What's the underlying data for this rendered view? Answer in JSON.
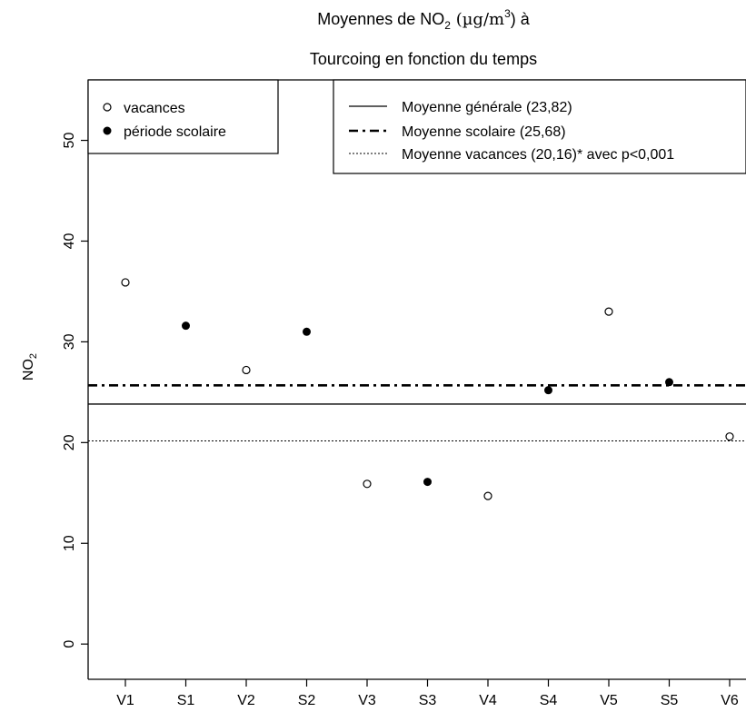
{
  "chart_data": {
    "type": "scatter",
    "title_line1_pre": "Moyennes de NO",
    "title_line1_sub": "2",
    "title_line1_unit_open": " (µg",
    "title_line1_unit_slash": "/",
    "title_line1_unit_m": "m",
    "title_line1_unit_sup": "3",
    "title_line1_post": ") à",
    "title_line2": "Tourcoing en fonction du temps",
    "ylabel_main": "NO",
    "ylabel_sub": "2",
    "xlabel": "",
    "categories": [
      "V1",
      "S1",
      "V2",
      "S2",
      "V3",
      "S3",
      "V4",
      "S4",
      "V5",
      "S5",
      "V6"
    ],
    "yticks": [
      0,
      10,
      20,
      30,
      40,
      50
    ],
    "ylim": [
      -3.5,
      56
    ],
    "series": [
      {
        "name": "vacances",
        "marker": "open-circle",
        "points": [
          {
            "x": "V1",
            "y": 35.9
          },
          {
            "x": "V2",
            "y": 27.2
          },
          {
            "x": "V3",
            "y": 15.9
          },
          {
            "x": "V4",
            "y": 14.7
          },
          {
            "x": "V5",
            "y": 33.0
          },
          {
            "x": "V6",
            "y": 20.6
          }
        ]
      },
      {
        "name": "période scolaire",
        "marker": "filled-circle",
        "points": [
          {
            "x": "S1",
            "y": 31.6
          },
          {
            "x": "S2",
            "y": 31.0
          },
          {
            "x": "S3",
            "y": 16.1
          },
          {
            "x": "S4",
            "y": 25.2
          },
          {
            "x": "S5",
            "y": 26.0
          }
        ]
      }
    ],
    "hlines": [
      {
        "label": "Moyenne générale (23,82)",
        "y": 23.82,
        "style": "solid"
      },
      {
        "label": "Moyenne scolaire (25,68)",
        "y": 25.68,
        "style": "dashdot"
      },
      {
        "label": "Moyenne vacances (20,16)* avec p<0,001",
        "y": 20.16,
        "style": "dotted"
      }
    ],
    "legend_points_position": "top-left",
    "legend_lines_position": "top-right",
    "grid": false
  }
}
